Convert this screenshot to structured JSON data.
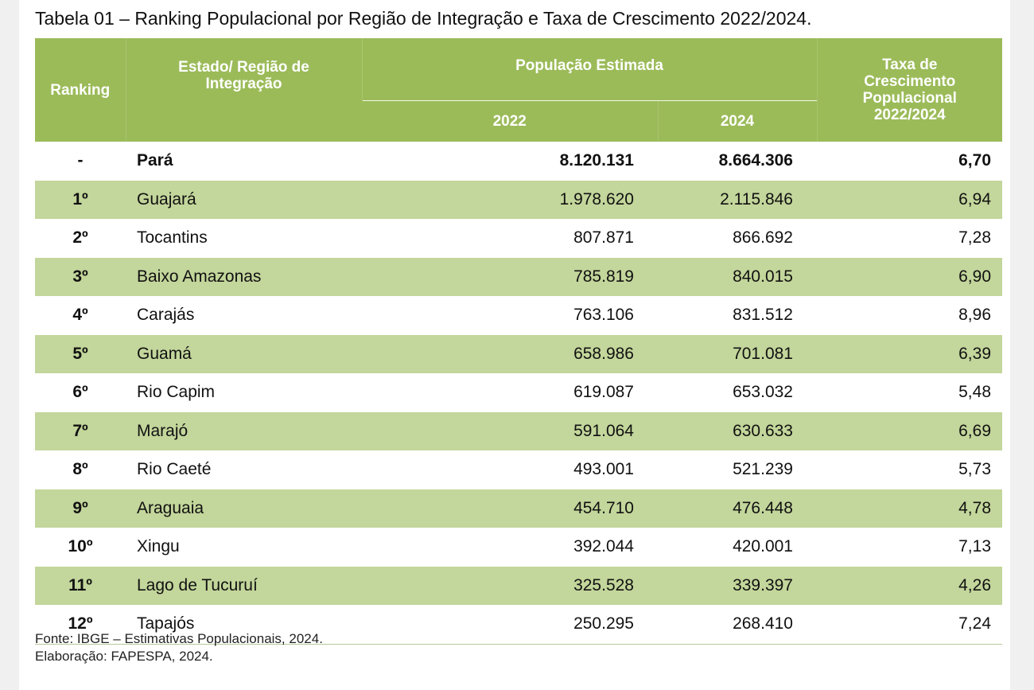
{
  "title": "Tabela 01 – Ranking Populacional por Região de Integração e Taxa de Crescimento 2022/2024.",
  "headers": {
    "ranking": "Ranking",
    "region": "Estado/ Região de Integração",
    "population": "População Estimada",
    "year_2022": "2022",
    "year_2024": "2024",
    "growth": "Taxa de Crescimento Populacional 2022/2024"
  },
  "rows": [
    {
      "rank": "-",
      "name": "Pará",
      "pop2022": "8.120.131",
      "pop2024": "8.664.306",
      "rate": "6,70"
    },
    {
      "rank": "1º",
      "name": "Guajará",
      "pop2022": "1.978.620",
      "pop2024": "2.115.846",
      "rate": "6,94"
    },
    {
      "rank": "2º",
      "name": "Tocantins",
      "pop2022": "807.871",
      "pop2024": "866.692",
      "rate": "7,28"
    },
    {
      "rank": "3º",
      "name": "Baixo Amazonas",
      "pop2022": "785.819",
      "pop2024": "840.015",
      "rate": "6,90"
    },
    {
      "rank": "4º",
      "name": "Carajás",
      "pop2022": "763.106",
      "pop2024": "831.512",
      "rate": "8,96"
    },
    {
      "rank": "5º",
      "name": "Guamá",
      "pop2022": "658.986",
      "pop2024": "701.081",
      "rate": "6,39"
    },
    {
      "rank": "6º",
      "name": "Rio Capim",
      "pop2022": "619.087",
      "pop2024": "653.032",
      "rate": "5,48"
    },
    {
      "rank": "7º",
      "name": "Marajó",
      "pop2022": "591.064",
      "pop2024": "630.633",
      "rate": "6,69"
    },
    {
      "rank": "8º",
      "name": "Rio Caeté",
      "pop2022": "493.001",
      "pop2024": "521.239",
      "rate": "5,73"
    },
    {
      "rank": "9º",
      "name": "Araguaia",
      "pop2022": "454.710",
      "pop2024": "476.448",
      "rate": "4,78"
    },
    {
      "rank": "10º",
      "name": "Xingu",
      "pop2022": "392.044",
      "pop2024": "420.001",
      "rate": "7,13"
    },
    {
      "rank": "11º",
      "name": "Lago de Tucuruí",
      "pop2022": "325.528",
      "pop2024": "339.397",
      "rate": "4,26"
    },
    {
      "rank": "12º",
      "name": "Tapajós",
      "pop2022": "250.295",
      "pop2024": "268.410",
      "rate": "7,24"
    }
  ],
  "source": "Fonte: IBGE – Estimativas Populacionais, 2024.",
  "elaboration": "Elaboração: FAPESPA, 2024.",
  "colors": {
    "header": "#9bbb59",
    "alt_row": "#c3d69b"
  }
}
